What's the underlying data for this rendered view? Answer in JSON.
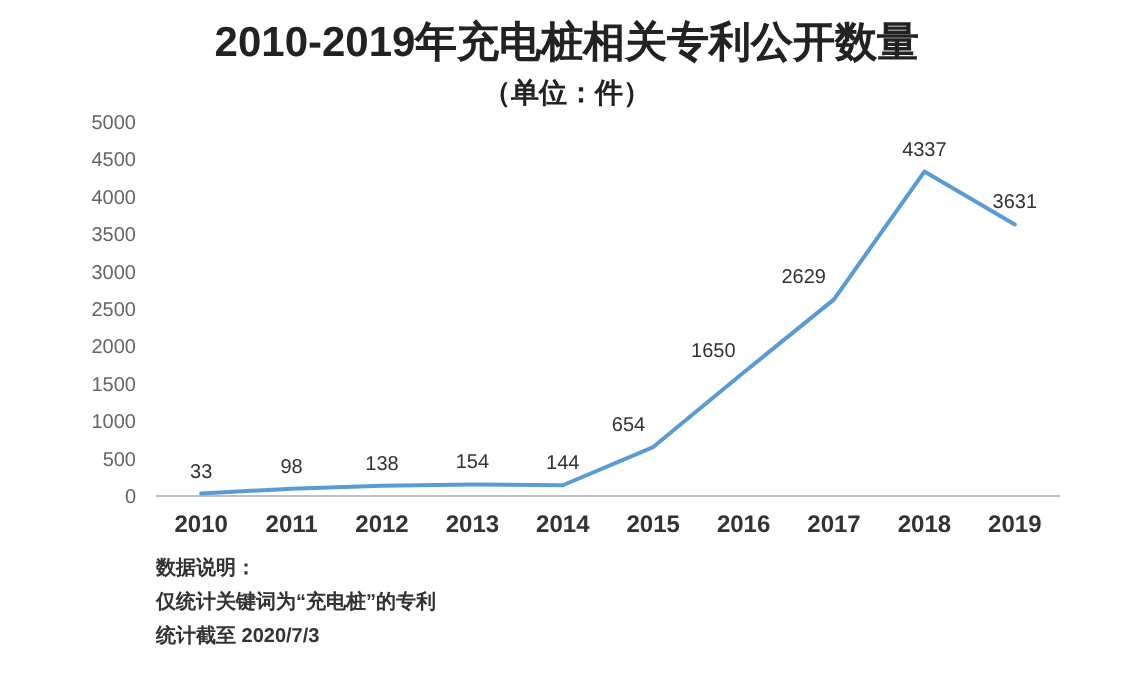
{
  "chart_data": {
    "type": "line",
    "title": "2010-2019年充电桩相关专利公开数量",
    "subtitle": "（单位：件）",
    "categories": [
      "2010",
      "2011",
      "2012",
      "2013",
      "2014",
      "2015",
      "2016",
      "2017",
      "2018",
      "2019"
    ],
    "series": [
      {
        "color": "#5b9bd5",
        "values": [
          33,
          98,
          138,
          154,
          144,
          654,
          1650,
          2629,
          4337,
          3631
        ]
      }
    ],
    "ylim": [
      0,
      5000
    ],
    "yticks": [
      0,
      500,
      1000,
      1500,
      2000,
      2500,
      3000,
      3500,
      4000,
      4500,
      5000
    ],
    "data_labels": true,
    "annotations": [
      "数据说明：",
      "仅统计关键词为“充电桩”的专利",
      "统计截至 2020/7/3"
    ]
  }
}
